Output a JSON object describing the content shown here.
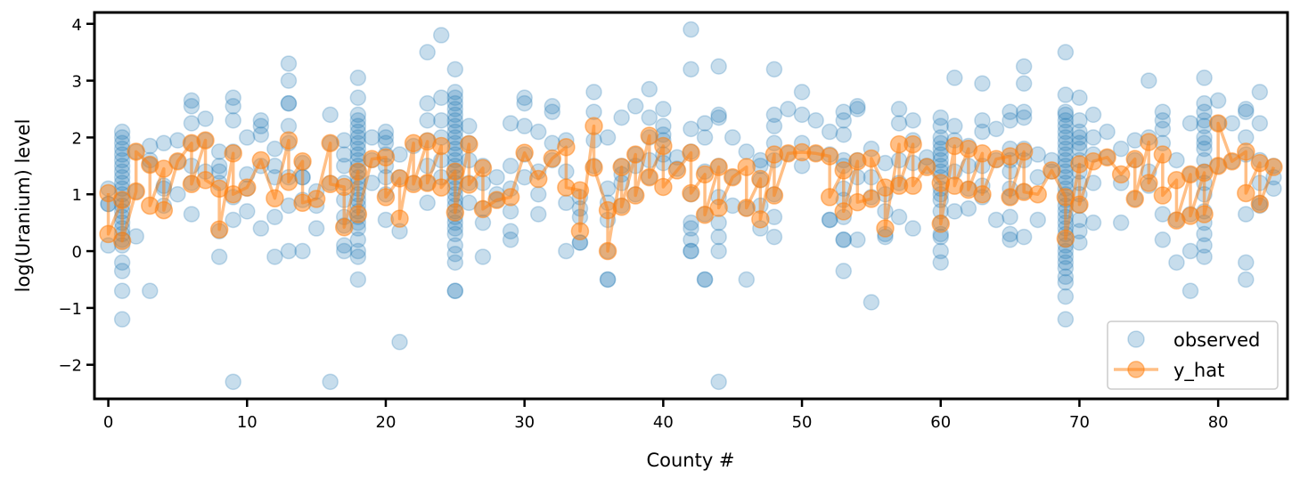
{
  "chart_data": {
    "type": "scatter",
    "xlabel": "County #",
    "ylabel": "log(Uranium) level",
    "xlim": [
      -1,
      85
    ],
    "ylim": [
      -2.6,
      4.2
    ],
    "xticks": [
      0,
      10,
      20,
      30,
      40,
      50,
      60,
      70,
      80
    ],
    "yticks": [
      -2,
      -1,
      0,
      1,
      2,
      3,
      4
    ],
    "grid": false,
    "legend_placement": "lower-right",
    "colors": {
      "observed": "#1f77b4",
      "y_hat": "#ff7f0e"
    },
    "series": [
      {
        "name": "observed",
        "kind": "scatter",
        "points_by_county": {
          "0": [
            0.83,
            0.83,
            1.1,
            0.1
          ],
          "1": [
            2.1,
            2.0,
            1.9,
            1.8,
            1.7,
            1.6,
            1.5,
            1.4,
            1.3,
            1.2,
            1.1,
            1.0,
            0.9,
            0.8,
            0.7,
            0.6,
            0.5,
            0.4,
            0.3,
            0.2,
            0.1,
            -0.2,
            -0.35,
            -0.7,
            -1.2
          ],
          "2": [
            1.75,
            1.05,
            0.26
          ],
          "3": [
            1.85,
            1.6,
            1.52,
            -0.7
          ],
          "4": [
            1.9,
            1.1,
            1.15,
            0.8
          ],
          "5": [
            1.95,
            1.58,
            1.0
          ],
          "6": [
            2.65,
            2.55,
            2.25,
            1.9,
            1.5,
            1.2,
            0.65
          ],
          "7": [
            2.33,
            1.4,
            1.95
          ],
          "8": [
            1.75,
            1.5,
            1.4,
            1.2,
            0.35,
            -0.1
          ],
          "9": [
            2.7,
            2.55,
            2.3,
            1.75,
            0.95,
            0.55,
            -2.3
          ],
          "10": [
            2.0,
            1.35,
            1.1,
            0.7
          ],
          "11": [
            2.3,
            2.2,
            2.05,
            1.5,
            0.4
          ],
          "12": [
            1.8,
            1.5,
            1.3,
            0.6,
            -0.1
          ],
          "13": [
            3.3,
            3.0,
            2.6,
            2.6,
            2.2,
            1.9,
            1.3,
            0.8,
            0.0
          ],
          "14": [
            1.55,
            1.3,
            1.3,
            0.9,
            0.0
          ],
          "15": [
            1.05,
            0.8,
            0.4
          ],
          "16": [
            2.4,
            1.9,
            1.2,
            -2.3
          ],
          "17": [
            1.95,
            1.7,
            1.5,
            1.2,
            0.9,
            0.6,
            0.45,
            0.1,
            0.0
          ],
          "18": [
            3.05,
            2.7,
            2.4,
            2.3,
            2.2,
            2.1,
            2.0,
            1.9,
            1.8,
            1.7,
            1.6,
            1.5,
            1.4,
            1.3,
            1.2,
            1.1,
            1.0,
            0.9,
            0.8,
            0.7,
            0.6,
            0.5,
            0.4,
            0.2,
            0.0,
            -0.1,
            -0.5
          ],
          "19": [
            2.0,
            1.6,
            1.2
          ],
          "20": [
            2.1,
            2.0,
            1.9,
            1.7,
            1.5,
            1.3,
            1.0,
            0.55
          ],
          "21": [
            1.7,
            1.3,
            0.35,
            -1.6
          ],
          "22": [
            1.85,
            1.2
          ],
          "23": [
            3.5,
            2.6,
            2.3,
            1.95,
            1.5,
            1.2,
            0.85
          ],
          "24": [
            3.8,
            2.7,
            2.3,
            2.0,
            1.6,
            1.3
          ],
          "25": [
            3.2,
            2.8,
            2.7,
            2.6,
            2.5,
            2.4,
            2.3,
            2.2,
            2.1,
            2.0,
            1.9,
            1.8,
            1.7,
            1.6,
            1.5,
            1.4,
            1.3,
            1.2,
            1.1,
            1.0,
            0.9,
            0.8,
            0.7,
            0.6,
            0.5,
            0.4,
            0.3,
            0.1,
            -0.05,
            -0.2,
            -0.7,
            -0.7
          ],
          "26": [
            2.2,
            1.9,
            1.6,
            1.2,
            0.85
          ],
          "27": [
            1.5,
            1.2,
            0.75,
            0.5,
            -0.1
          ],
          "28": [
            1.3,
            1.0,
            0.9
          ],
          "29": [
            2.25,
            1.5,
            1.1,
            0.7,
            0.35,
            0.2
          ],
          "30": [
            2.7,
            2.6,
            2.2,
            1.7,
            1.3
          ],
          "31": [
            2.1,
            1.4,
            1.0,
            0.65
          ],
          "32": [
            2.55,
            2.45,
            1.9,
            1.6
          ],
          "33": [
            1.95,
            1.4,
            0.85,
            0.0
          ],
          "34": [
            0.95,
            0.75,
            0.6,
            0.15,
            0.15
          ],
          "35": [
            2.8,
            2.45,
            1.95,
            1.5
          ],
          "36": [
            2.0,
            1.1,
            0.85,
            0.55,
            0.0,
            -0.5,
            -0.5
          ],
          "37": [
            2.35,
            1.5,
            1.35,
            1.2,
            0.8
          ],
          "38": [
            2.55,
            1.7,
            1.5,
            1.0
          ],
          "39": [
            2.85,
            2.35,
            2.0,
            1.6,
            1.3
          ],
          "40": [
            2.5,
            2.2,
            2.05,
            1.95,
            1.7,
            1.55
          ],
          "41": [
            1.65,
            1.45
          ],
          "42": [
            3.9,
            3.2,
            2.15,
            1.75,
            1.0,
            0.5,
            0.4,
            0.2,
            0.0,
            0.0
          ],
          "43": [
            2.25,
            2.0,
            1.4,
            0.65,
            -0.5,
            -0.5
          ],
          "44": [
            3.25,
            2.4,
            2.35,
            1.5,
            0.95,
            0.5,
            0.25,
            0.0,
            -2.3
          ],
          "45": [
            2.0,
            1.3,
            0.8
          ],
          "46": [
            1.75,
            0.75,
            -0.5
          ],
          "47": [
            1.6,
            1.5,
            1.25,
            0.8,
            0.4
          ],
          "48": [
            3.2,
            2.4,
            2.2,
            1.9,
            1.6,
            1.0,
            0.6,
            0.25
          ],
          "49": [
            2.5,
            1.72
          ],
          "50": [
            2.8,
            2.4,
            1.9,
            1.5
          ],
          "51": [
            2.3,
            1.72
          ],
          "52": [
            2.1,
            1.7,
            0.55,
            0.55
          ],
          "53": [
            2.45,
            2.3,
            2.05,
            1.6,
            1.5,
            1.1,
            0.9,
            0.6,
            0.2,
            0.2,
            -0.35
          ],
          "54": [
            2.55,
            2.5,
            1.6,
            1.3,
            0.2
          ],
          "55": [
            1.8,
            1.3,
            0.95,
            -0.9
          ],
          "56": [
            1.55,
            1.0,
            0.7,
            0.3,
            0.25
          ],
          "57": [
            2.5,
            2.25,
            1.6,
            1.2,
            0.6
          ],
          "58": [
            2.3,
            1.95,
            1.55,
            0.4
          ],
          "59": [
            1.65,
            1.5
          ],
          "60": [
            2.35,
            2.2,
            2.0,
            1.9,
            1.8,
            1.7,
            1.6,
            1.5,
            1.4,
            1.3,
            1.1,
            1.0,
            0.9,
            0.7,
            0.5,
            0.3,
            0.25,
            0.0,
            -0.2
          ],
          "61": [
            3.05,
            2.2,
            1.95,
            1.4,
            0.7
          ],
          "62": [
            1.85,
            1.5,
            1.1,
            0.75
          ],
          "63": [
            2.95,
            2.3,
            2.1,
            1.5,
            1.15,
            0.95
          ],
          "64": [
            2.15,
            1.6,
            0.55
          ],
          "65": [
            2.45,
            2.3,
            1.8,
            1.6,
            1.4,
            1.1,
            0.95,
            0.6,
            0.3,
            0.2
          ],
          "66": [
            3.25,
            2.95,
            2.45,
            2.35,
            1.8,
            1.6,
            1.05,
            0.25
          ],
          "67": [
            1.7,
            1.3,
            0.55
          ],
          "68": [
            1.6,
            1.4
          ],
          "69": [
            3.5,
            2.75,
            2.45,
            2.4,
            2.3,
            2.2,
            2.1,
            2.0,
            1.9,
            1.8,
            1.7,
            1.6,
            1.5,
            1.4,
            1.3,
            1.2,
            1.1,
            1.0,
            0.9,
            0.8,
            0.7,
            0.6,
            0.5,
            0.4,
            0.3,
            0.2,
            0.1,
            0.0,
            -0.1,
            -0.2,
            -0.3,
            -0.45,
            -0.55,
            -0.8,
            -1.2
          ],
          "70": [
            2.7,
            2.3,
            2.1,
            2.0,
            1.9,
            1.8,
            1.6,
            1.4,
            1.2,
            1.0,
            0.8,
            0.55,
            0.35,
            0.15
          ],
          "71": [
            2.4,
            2.0,
            1.7,
            1.2,
            0.5
          ],
          "72": [
            2.1,
            1.65
          ],
          "73": [
            1.8,
            1.2,
            0.5
          ],
          "74": [
            1.95,
            1.6,
            0.92
          ],
          "75": [
            3.0,
            2.0,
            1.4,
            1.15
          ],
          "76": [
            2.45,
            2.3,
            2.15,
            1.9,
            0.65,
            0.2
          ],
          "77": [
            1.6,
            0.55,
            -0.2
          ],
          "78": [
            2.25,
            1.35,
            0.65,
            0.0,
            -0.7
          ],
          "79": [
            3.05,
            2.6,
            2.45,
            2.3,
            2.2,
            2.0,
            1.9,
            1.8,
            1.6,
            1.4,
            1.2,
            1.0,
            0.7,
            0.5,
            0.3,
            0.1,
            -0.1
          ],
          "80": [
            2.65,
            2.25,
            1.5
          ],
          "81": [
            2.25,
            1.58
          ],
          "82": [
            2.5,
            2.45,
            2.0,
            1.7,
            0.65,
            -0.2,
            -0.5
          ],
          "83": [
            2.8,
            2.25,
            1.6,
            1.2,
            0.85,
            0.8
          ],
          "84": [
            1.5,
            1.3,
            1.1
          ]
        }
      },
      {
        "name": "y_hat",
        "kind": "line+markers",
        "values_by_county": [
          [
            1.02,
            0.3
          ],
          [
            0.9,
            0.18
          ],
          [
            1.05,
            1.75
          ],
          [
            1.52,
            0.8
          ],
          [
            1.45,
            0.72
          ],
          [
            1.58
          ],
          [
            1.9,
            1.18
          ],
          [
            1.95,
            1.25
          ],
          [
            1.1,
            0.38
          ],
          [
            1.72,
            1.0
          ],
          [
            1.12
          ],
          [
            1.6
          ],
          [
            0.93
          ],
          [
            1.95,
            1.22
          ],
          [
            1.58,
            0.85
          ],
          [
            0.92
          ],
          [
            1.9,
            1.18
          ],
          [
            1.13,
            0.42
          ],
          [
            1.4,
            0.65
          ],
          [
            1.62
          ],
          [
            1.65,
            0.95
          ],
          [
            1.28,
            0.57
          ],
          [
            1.9,
            1.18
          ],
          [
            1.93,
            1.2
          ],
          [
            1.85,
            1.12
          ],
          [
            1.4,
            0.68
          ],
          [
            1.88,
            1.17
          ],
          [
            1.46,
            0.74
          ],
          [
            0.9
          ],
          [
            0.95
          ],
          [
            1.73
          ],
          [
            1.27
          ],
          [
            1.63
          ],
          [
            1.83,
            1.12
          ],
          [
            1.07,
            0.35
          ],
          [
            2.2,
            1.47
          ],
          [
            0.72,
            0.0
          ],
          [
            1.48,
            0.78
          ],
          [
            1.7,
            0.98
          ],
          [
            2.03,
            1.3
          ],
          [
            1.85,
            1.13
          ],
          [
            1.42
          ],
          [
            1.73,
            1.02
          ],
          [
            1.35,
            0.64
          ],
          [
            1.48,
            0.76
          ],
          [
            1.3
          ],
          [
            1.48,
            0.76
          ],
          [
            1.27,
            0.56
          ],
          [
            1.7,
            0.98
          ],
          [
            1.72
          ],
          [
            1.74
          ],
          [
            1.72
          ],
          [
            1.67,
            0.95
          ],
          [
            1.42,
            0.7
          ],
          [
            1.58,
            0.86
          ],
          [
            0.92,
            1.63
          ],
          [
            1.12,
            0.4
          ],
          [
            1.88,
            1.15
          ],
          [
            1.88,
            1.15
          ],
          [
            1.48
          ],
          [
            1.2,
            0.48
          ],
          [
            1.85,
            1.15
          ],
          [
            1.8,
            1.08
          ],
          [
            1.72,
            1.0
          ],
          [
            1.62
          ],
          [
            1.67,
            0.95
          ],
          [
            1.75,
            1.04
          ],
          [
            1.0
          ],
          [
            1.42
          ],
          [
            0.95,
            0.22
          ],
          [
            1.53,
            0.82
          ],
          [
            1.58
          ],
          [
            1.65
          ],
          [
            1.35
          ],
          [
            1.62,
            0.92
          ],
          [
            1.92,
            1.2
          ],
          [
            1.7,
            0.98
          ],
          [
            1.25,
            0.54
          ],
          [
            1.35,
            0.62
          ],
          [
            1.38,
            0.65
          ],
          [
            1.5,
            2.25
          ],
          [
            1.58
          ],
          [
            1.75,
            1.02
          ],
          [
            1.55,
            0.83
          ],
          [
            1.48
          ]
        ]
      }
    ]
  }
}
